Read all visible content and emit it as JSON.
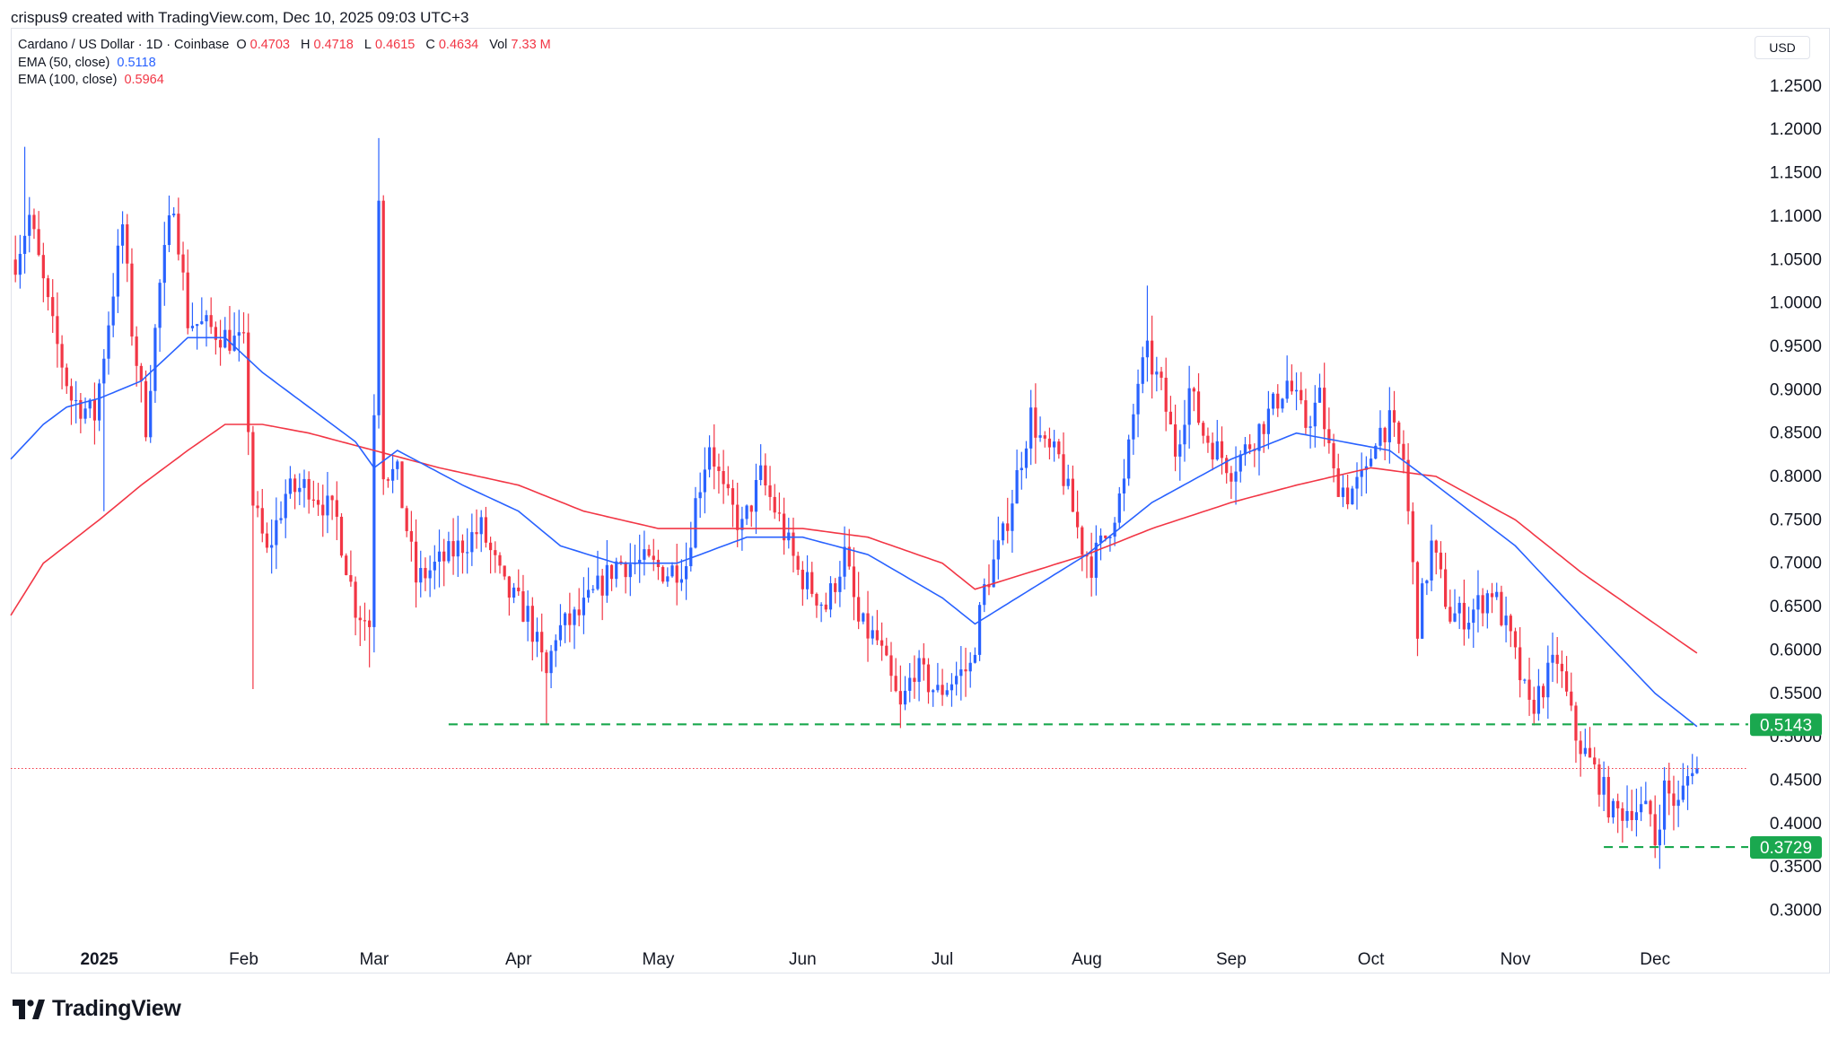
{
  "header": {
    "created_text": "crispus9 created with TradingView.com, Dec 10, 2025 09:03 UTC+3"
  },
  "legend": {
    "symbol": "Cardano / US Dollar · 1D · Coinbase",
    "open_label": "O",
    "open": "0.4703",
    "high_label": "H",
    "high": "0.4718",
    "low_label": "L",
    "low": "0.4615",
    "close_label": "C",
    "close": "0.4634",
    "vol_label": "Vol",
    "vol": "7.33 M",
    "ema50_label": "EMA (50, close)",
    "ema50_value": "0.5118",
    "ema100_label": "EMA (100, close)",
    "ema100_value": "0.5964"
  },
  "currency": "USD",
  "footer": {
    "brand": "TradingView"
  },
  "colors": {
    "up": "#2962ff",
    "down": "#f23645",
    "ema50": "#2962ff",
    "ema100": "#f23645",
    "support": "#1aa84f",
    "last_price": "#f23645",
    "grid": "#ffffff",
    "axis_text": "#131722"
  },
  "chart_data": {
    "type": "candlestick",
    "y_axis_ticks": [
      "0.3000",
      "0.3500",
      "0.4000",
      "0.4500",
      "0.5000",
      "0.5500",
      "0.6000",
      "0.6500",
      "0.7000",
      "0.7500",
      "0.8000",
      "0.8500",
      "0.9000",
      "0.9500",
      "1.0000",
      "1.0500",
      "1.1000",
      "1.1500",
      "1.2000",
      "1.2500"
    ],
    "x_axis_ticks": [
      {
        "label": "2025",
        "date": "2025-01-01"
      },
      {
        "label": "Feb",
        "date": "2025-02-01"
      },
      {
        "label": "Mar",
        "date": "2025-03-01"
      },
      {
        "label": "Apr",
        "date": "2025-04-01"
      },
      {
        "label": "May",
        "date": "2025-05-01"
      },
      {
        "label": "Jun",
        "date": "2025-06-01"
      },
      {
        "label": "Jul",
        "date": "2025-07-01"
      },
      {
        "label": "Aug",
        "date": "2025-08-01"
      },
      {
        "label": "Sep",
        "date": "2025-09-01"
      },
      {
        "label": "Oct",
        "date": "2025-10-01"
      },
      {
        "label": "Nov",
        "date": "2025-11-01"
      },
      {
        "label": "Dec",
        "date": "2025-12-01"
      }
    ],
    "ylim": [
      0.2747,
      1.2747
    ],
    "x_range": [
      "2024-12-13",
      "2025-12-21"
    ],
    "horizontal_levels": [
      {
        "value": 0.5143,
        "label": "0.5143",
        "from": "2025-03-17"
      },
      {
        "value": 0.3729,
        "label": "0.3729",
        "from": "2025-11-20"
      }
    ],
    "last_price": 0.4634,
    "close_anchors": [
      [
        "2024-12-14",
        1.05
      ],
      [
        "2024-12-17",
        1.1
      ],
      [
        "2024-12-22",
        0.97
      ],
      [
        "2024-12-26",
        0.89
      ],
      [
        "2024-12-31",
        0.87
      ],
      [
        "2025-01-06",
        1.09
      ],
      [
        "2025-01-08",
        0.97
      ],
      [
        "2025-01-11",
        0.86
      ],
      [
        "2025-01-14",
        1.02
      ],
      [
        "2025-01-17",
        1.12
      ],
      [
        "2025-01-20",
        0.98
      ],
      [
        "2025-01-25",
        0.97
      ],
      [
        "2025-02-01",
        0.95
      ],
      [
        "2025-02-03",
        0.77
      ],
      [
        "2025-02-06",
        0.71
      ],
      [
        "2025-02-10",
        0.78
      ],
      [
        "2025-02-15",
        0.79
      ],
      [
        "2025-02-21",
        0.75
      ],
      [
        "2025-02-25",
        0.65
      ],
      [
        "2025-02-28",
        0.63
      ],
      [
        "2025-03-02",
        1.13
      ],
      [
        "2025-03-03",
        0.81
      ],
      [
        "2025-03-06",
        0.8
      ],
      [
        "2025-03-10",
        0.68
      ],
      [
        "2025-03-15",
        0.7
      ],
      [
        "2025-03-24",
        0.74
      ],
      [
        "2025-03-29",
        0.67
      ],
      [
        "2025-04-03",
        0.64
      ],
      [
        "2025-04-07",
        0.57
      ],
      [
        "2025-04-09",
        0.62
      ],
      [
        "2025-04-14",
        0.64
      ],
      [
        "2025-04-22",
        0.7
      ],
      [
        "2025-04-28",
        0.7
      ],
      [
        "2025-05-03",
        0.69
      ],
      [
        "2025-05-07",
        0.7
      ],
      [
        "2025-05-09",
        0.77
      ],
      [
        "2025-05-12",
        0.84
      ],
      [
        "2025-05-15",
        0.78
      ],
      [
        "2025-05-19",
        0.74
      ],
      [
        "2025-05-23",
        0.8
      ],
      [
        "2025-05-27",
        0.75
      ],
      [
        "2025-05-31",
        0.69
      ],
      [
        "2025-06-06",
        0.65
      ],
      [
        "2025-06-10",
        0.71
      ],
      [
        "2025-06-13",
        0.63
      ],
      [
        "2025-06-17",
        0.61
      ],
      [
        "2025-06-22",
        0.53
      ],
      [
        "2025-06-25",
        0.58
      ],
      [
        "2025-06-30",
        0.55
      ],
      [
        "2025-07-04",
        0.57
      ],
      [
        "2025-07-07",
        0.58
      ],
      [
        "2025-07-10",
        0.67
      ],
      [
        "2025-07-14",
        0.73
      ],
      [
        "2025-07-17",
        0.8
      ],
      [
        "2025-07-20",
        0.87
      ],
      [
        "2025-07-23",
        0.83
      ],
      [
        "2025-07-26",
        0.82
      ],
      [
        "2025-07-31",
        0.72
      ],
      [
        "2025-08-02",
        0.7
      ],
      [
        "2025-08-05",
        0.73
      ],
      [
        "2025-08-09",
        0.79
      ],
      [
        "2025-08-12",
        0.91
      ],
      [
        "2025-08-14",
        0.94
      ],
      [
        "2025-08-17",
        0.9
      ],
      [
        "2025-08-20",
        0.83
      ],
      [
        "2025-08-23",
        0.9
      ],
      [
        "2025-08-26",
        0.85
      ],
      [
        "2025-09-01",
        0.81
      ],
      [
        "2025-09-04",
        0.83
      ],
      [
        "2025-09-10",
        0.88
      ],
      [
        "2025-09-13",
        0.91
      ],
      [
        "2025-09-17",
        0.86
      ],
      [
        "2025-09-20",
        0.89
      ],
      [
        "2025-09-23",
        0.8
      ],
      [
        "2025-09-26",
        0.78
      ],
      [
        "2025-09-30",
        0.8
      ],
      [
        "2025-10-02",
        0.85
      ],
      [
        "2025-10-05",
        0.86
      ],
      [
        "2025-10-08",
        0.82
      ],
      [
        "2025-10-11",
        0.63
      ],
      [
        "2025-10-14",
        0.72
      ],
      [
        "2025-10-18",
        0.64
      ],
      [
        "2025-10-22",
        0.64
      ],
      [
        "2025-10-27",
        0.67
      ],
      [
        "2025-10-31",
        0.61
      ],
      [
        "2025-11-04",
        0.53
      ],
      [
        "2025-11-07",
        0.56
      ],
      [
        "2025-11-10",
        0.59
      ],
      [
        "2025-11-14",
        0.5
      ],
      [
        "2025-11-19",
        0.45
      ],
      [
        "2025-11-22",
        0.41
      ],
      [
        "2025-11-26",
        0.42
      ],
      [
        "2025-11-30",
        0.41
      ],
      [
        "2025-12-01",
        0.38
      ],
      [
        "2025-12-03",
        0.44
      ],
      [
        "2025-12-06",
        0.42
      ],
      [
        "2025-12-09",
        0.47
      ],
      [
        "2025-12-10",
        0.4634
      ]
    ],
    "ema50_anchors": [
      [
        "2024-12-13",
        0.82
      ],
      [
        "2024-12-20",
        0.86
      ],
      [
        "2024-12-25",
        0.88
      ],
      [
        "2025-01-01",
        0.89
      ],
      [
        "2025-01-10",
        0.91
      ],
      [
        "2025-01-20",
        0.96
      ],
      [
        "2025-01-28",
        0.96
      ],
      [
        "2025-02-05",
        0.92
      ],
      [
        "2025-02-15",
        0.88
      ],
      [
        "2025-02-25",
        0.84
      ],
      [
        "2025-03-01",
        0.81
      ],
      [
        "2025-03-06",
        0.83
      ],
      [
        "2025-03-20",
        0.79
      ],
      [
        "2025-04-01",
        0.76
      ],
      [
        "2025-04-10",
        0.72
      ],
      [
        "2025-04-22",
        0.7
      ],
      [
        "2025-05-05",
        0.7
      ],
      [
        "2025-05-20",
        0.73
      ],
      [
        "2025-06-01",
        0.73
      ],
      [
        "2025-06-15",
        0.71
      ],
      [
        "2025-07-01",
        0.66
      ],
      [
        "2025-07-08",
        0.63
      ],
      [
        "2025-07-20",
        0.67
      ],
      [
        "2025-08-01",
        0.71
      ],
      [
        "2025-08-15",
        0.77
      ],
      [
        "2025-09-01",
        0.82
      ],
      [
        "2025-09-15",
        0.85
      ],
      [
        "2025-09-25",
        0.84
      ],
      [
        "2025-10-05",
        0.83
      ],
      [
        "2025-10-15",
        0.79
      ],
      [
        "2025-11-01",
        0.72
      ],
      [
        "2025-11-15",
        0.64
      ],
      [
        "2025-12-01",
        0.55
      ],
      [
        "2025-12-10",
        0.5118
      ]
    ],
    "ema100_anchors": [
      [
        "2024-12-13",
        0.64
      ],
      [
        "2024-12-20",
        0.7
      ],
      [
        "2025-01-01",
        0.75
      ],
      [
        "2025-01-10",
        0.79
      ],
      [
        "2025-01-20",
        0.83
      ],
      [
        "2025-01-28",
        0.86
      ],
      [
        "2025-02-05",
        0.86
      ],
      [
        "2025-02-15",
        0.85
      ],
      [
        "2025-03-01",
        0.83
      ],
      [
        "2025-03-15",
        0.81
      ],
      [
        "2025-04-01",
        0.79
      ],
      [
        "2025-04-15",
        0.76
      ],
      [
        "2025-05-01",
        0.74
      ],
      [
        "2025-05-20",
        0.74
      ],
      [
        "2025-06-01",
        0.74
      ],
      [
        "2025-06-15",
        0.73
      ],
      [
        "2025-07-01",
        0.7
      ],
      [
        "2025-07-08",
        0.67
      ],
      [
        "2025-07-20",
        0.69
      ],
      [
        "2025-08-01",
        0.71
      ],
      [
        "2025-08-15",
        0.74
      ],
      [
        "2025-09-01",
        0.77
      ],
      [
        "2025-09-15",
        0.79
      ],
      [
        "2025-10-01",
        0.81
      ],
      [
        "2025-10-15",
        0.8
      ],
      [
        "2025-11-01",
        0.75
      ],
      [
        "2025-11-15",
        0.69
      ],
      [
        "2025-12-01",
        0.63
      ],
      [
        "2025-12-10",
        0.5964
      ]
    ]
  }
}
